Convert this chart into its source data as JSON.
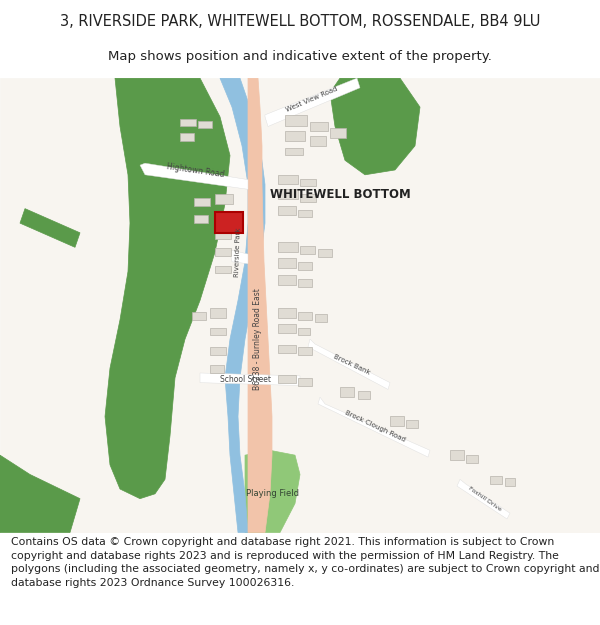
{
  "title_line1": "3, RIVERSIDE PARK, WHITEWELL BOTTOM, ROSSENDALE, BB4 9LU",
  "title_line2": "Map shows position and indicative extent of the property.",
  "footer_text": "Contains OS data © Crown copyright and database right 2021. This information is subject to Crown copyright and database rights 2023 and is reproduced with the permission of HM Land Registry. The polygons (including the associated geometry, namely x, y co-ordinates) are subject to Crown copyright and database rights 2023 Ordnance Survey 100026316.",
  "title_fontsize": 10.5,
  "subtitle_fontsize": 9.5,
  "footer_fontsize": 7.8,
  "bg_color": "#ffffff",
  "map_bg": "#f8f5f0",
  "road_main_color": "#f2c4aa",
  "road_secondary_color": "#ffffff",
  "green_color": "#5a9a4a",
  "playing_field_color": "#90c878",
  "water_color": "#90c0e0",
  "building_fill": "#e0dcd4",
  "building_edge": "#b8b4ac",
  "highlight_fill": "#cc2222",
  "highlight_edge": "#aa0000",
  "text_color": "#222222",
  "road_text_color": "#444444"
}
